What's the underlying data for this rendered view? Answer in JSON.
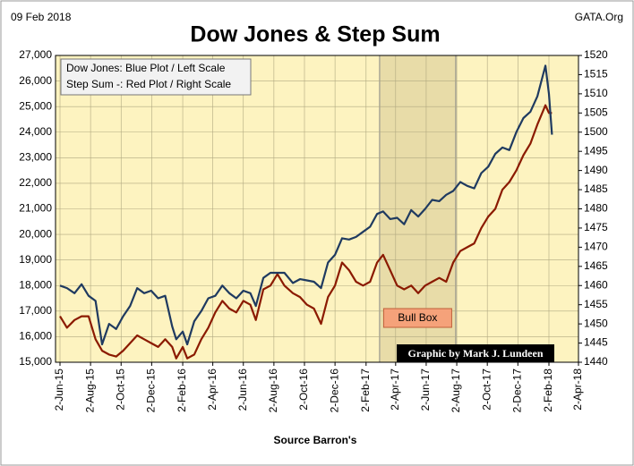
{
  "chart_data": {
    "type": "line",
    "title": "Dow Jones & Step Sum",
    "date_label": "09 Feb 2018",
    "source_label": "GATA.Org",
    "credit": "Graphic by Mark J. Lundeen",
    "x_label": "Source Barron's",
    "bull_box": {
      "label": "Bull Box",
      "x": [
        "2017-03-01",
        "2017-07-31"
      ]
    },
    "x": [
      "2015-06-02",
      "2015-06-16",
      "2015-07-01",
      "2015-07-15",
      "2015-07-29",
      "2015-08-12",
      "2015-08-25",
      "2015-09-08",
      "2015-09-22",
      "2015-10-06",
      "2015-10-20",
      "2015-11-03",
      "2015-11-17",
      "2015-12-01",
      "2015-12-15",
      "2015-12-29",
      "2016-01-12",
      "2016-01-20",
      "2016-02-02",
      "2016-02-11",
      "2016-02-25",
      "2016-03-10",
      "2016-03-24",
      "2016-04-07",
      "2016-04-21",
      "2016-05-05",
      "2016-05-19",
      "2016-06-02",
      "2016-06-16",
      "2016-06-27",
      "2016-07-12",
      "2016-07-26",
      "2016-08-09",
      "2016-08-23",
      "2016-09-09",
      "2016-09-23",
      "2016-10-07",
      "2016-10-21",
      "2016-11-04",
      "2016-11-18",
      "2016-12-02",
      "2016-12-16",
      "2016-12-30",
      "2017-01-13",
      "2017-01-27",
      "2017-02-10",
      "2017-02-24",
      "2017-03-08",
      "2017-03-22",
      "2017-04-05",
      "2017-04-19",
      "2017-05-03",
      "2017-05-17",
      "2017-05-31",
      "2017-06-14",
      "2017-06-28",
      "2017-07-12",
      "2017-07-26",
      "2017-08-09",
      "2017-08-23",
      "2017-09-06",
      "2017-09-20",
      "2017-10-04",
      "2017-10-18",
      "2017-11-01",
      "2017-11-15",
      "2017-11-29",
      "2017-12-13",
      "2017-12-27",
      "2018-01-10",
      "2018-01-26",
      "2018-02-02",
      "2018-02-08"
    ],
    "series": [
      {
        "name": "Dow Jones: Blue Plot / Left Scale",
        "color": "#1f3a60",
        "axis": "y",
        "values": [
          18000,
          17900,
          17700,
          18050,
          17600,
          17400,
          15700,
          16500,
          16300,
          16800,
          17200,
          17900,
          17700,
          17800,
          17500,
          17600,
          16400,
          15900,
          16200,
          15700,
          16600,
          17000,
          17500,
          17600,
          18000,
          17700,
          17500,
          17800,
          17700,
          17200,
          18300,
          18500,
          18500,
          18500,
          18100,
          18250,
          18200,
          18150,
          17900,
          18900,
          19200,
          19850,
          19800,
          19900,
          20100,
          20300,
          20800,
          20900,
          20600,
          20650,
          20400,
          20950,
          20700,
          21000,
          21350,
          21300,
          21550,
          21700,
          22050,
          21900,
          21800,
          22400,
          22650,
          23150,
          23400,
          23300,
          24000,
          24550,
          24800,
          25400,
          26600,
          25500,
          23900
        ]
      },
      {
        "name": "Step Sum -: Red Plot / Right Scale",
        "color": "#8b1a00",
        "axis": "y2",
        "values": [
          1452,
          1449,
          1451,
          1452,
          1452,
          1446,
          1443,
          1442,
          1441.5,
          1443,
          1445,
          1447,
          1446,
          1445,
          1444,
          1446,
          1444,
          1441,
          1444,
          1441,
          1442,
          1446,
          1449,
          1453,
          1456,
          1454,
          1453,
          1456,
          1455,
          1451,
          1459,
          1460,
          1463,
          1460,
          1458,
          1457,
          1455,
          1454,
          1450,
          1457,
          1460,
          1466,
          1464,
          1461,
          1460,
          1461,
          1466,
          1468,
          1464,
          1460,
          1459,
          1460,
          1458,
          1460,
          1461,
          1462,
          1461,
          1466,
          1469,
          1470,
          1471,
          1475,
          1478,
          1480,
          1485,
          1487,
          1490,
          1494,
          1497,
          1502,
          1507,
          1505,
          1505
        ]
      }
    ],
    "xlim": [
      "2015-06-02",
      "2018-04-02"
    ],
    "xticks": [
      {
        "value": "2015-06-02",
        "label": "2-Jun-15"
      },
      {
        "value": "2015-08-02",
        "label": "2-Aug-15"
      },
      {
        "value": "2015-10-02",
        "label": "2-Oct-15"
      },
      {
        "value": "2015-12-02",
        "label": "2-Dec-15"
      },
      {
        "value": "2016-02-02",
        "label": "2-Feb-16"
      },
      {
        "value": "2016-04-02",
        "label": "2-Apr-16"
      },
      {
        "value": "2016-06-02",
        "label": "2-Jun-16"
      },
      {
        "value": "2016-08-02",
        "label": "2-Aug-16"
      },
      {
        "value": "2016-10-02",
        "label": "2-Oct-16"
      },
      {
        "value": "2016-12-02",
        "label": "2-Dec-16"
      },
      {
        "value": "2017-02-02",
        "label": "2-Feb-17"
      },
      {
        "value": "2017-04-02",
        "label": "2-Apr-17"
      },
      {
        "value": "2017-06-02",
        "label": "2-Jun-17"
      },
      {
        "value": "2017-08-02",
        "label": "2-Aug-17"
      },
      {
        "value": "2017-10-02",
        "label": "2-Oct-17"
      },
      {
        "value": "2017-12-02",
        "label": "2-Dec-17"
      },
      {
        "value": "2018-02-02",
        "label": "2-Feb-18"
      },
      {
        "value": "2018-04-02",
        "label": "2-Apr-18"
      }
    ],
    "ylim": [
      15000,
      27000
    ],
    "yticks": [
      {
        "value": 15000,
        "label": "15,000"
      },
      {
        "value": 16000,
        "label": "16,000"
      },
      {
        "value": 17000,
        "label": "17,000"
      },
      {
        "value": 18000,
        "label": "18,000"
      },
      {
        "value": 19000,
        "label": "19,000"
      },
      {
        "value": 20000,
        "label": "20,000"
      },
      {
        "value": 21000,
        "label": "21,000"
      },
      {
        "value": 22000,
        "label": "22,000"
      },
      {
        "value": 23000,
        "label": "23,000"
      },
      {
        "value": 24000,
        "label": "24,000"
      },
      {
        "value": 25000,
        "label": "25,000"
      },
      {
        "value": 26000,
        "label": "26,000"
      },
      {
        "value": 27000,
        "label": "27,000"
      }
    ],
    "y2lim": [
      1440,
      1520
    ],
    "y2ticks": [
      1440,
      1445,
      1450,
      1455,
      1460,
      1465,
      1470,
      1475,
      1480,
      1485,
      1490,
      1495,
      1500,
      1505,
      1510,
      1515,
      1520
    ],
    "grid": true,
    "background": "#fdf3c0"
  }
}
